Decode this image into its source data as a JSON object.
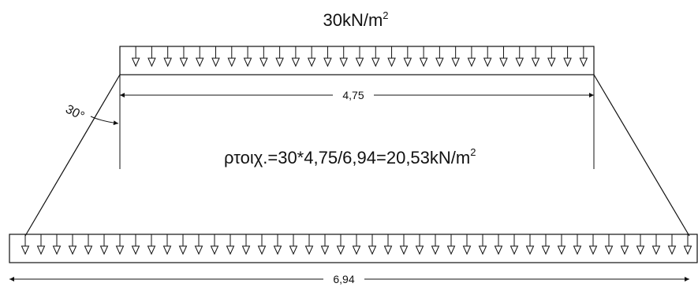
{
  "top_load": {
    "value_text": "30kN/m",
    "exponent": "2",
    "arrow_count": 29
  },
  "bottom_load": {
    "arrow_count": 43
  },
  "dim_top": {
    "label": "4,75"
  },
  "dim_bottom": {
    "label": "6,94"
  },
  "angle": {
    "label": "30°"
  },
  "formula": {
    "text": "ρτοιχ.=30*4,75/6,94=20,53kN/m",
    "exponent": "2"
  },
  "colors": {
    "line": "#111111",
    "background": "#ffffff"
  }
}
